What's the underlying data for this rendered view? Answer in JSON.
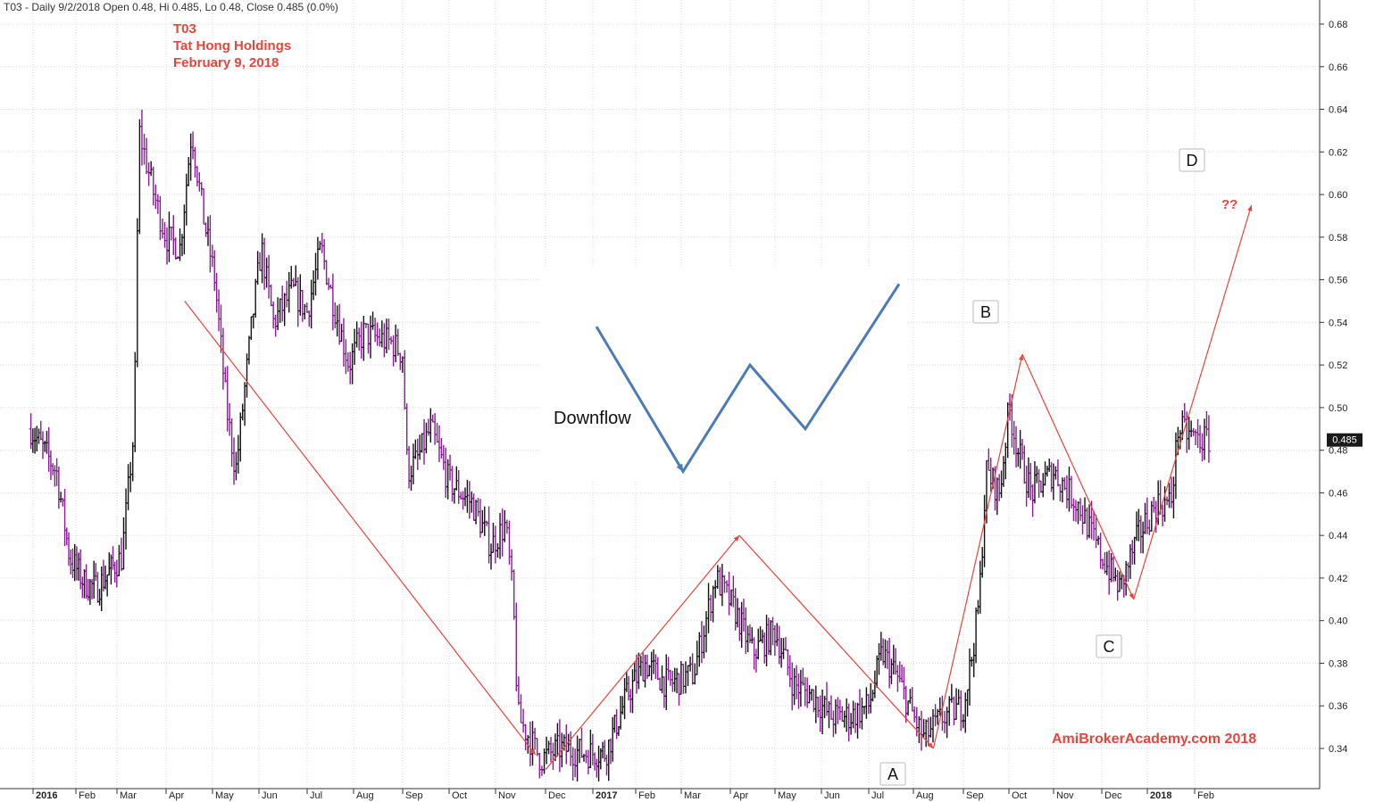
{
  "chart_data": {
    "type": "ohlc",
    "ticker_line": "T03 - Daily 9/2/2018 Open 0.48, Hi 0.485, Lo 0.48, Close 0.485 (0.0%)",
    "title_lines": [
      "T03",
      "Tat Hong Holdings",
      "February 9, 2018"
    ],
    "watermark": "AmiBrokerAcademy.com  2018",
    "last_price_label": "0.485",
    "last_price": 0.485,
    "ylim": [
      0.325,
      0.69
    ],
    "y_ticks": [
      0.34,
      0.36,
      0.38,
      0.4,
      0.42,
      0.44,
      0.46,
      0.48,
      0.5,
      0.52,
      0.54,
      0.56,
      0.58,
      0.6,
      0.62,
      0.64,
      0.66,
      0.68
    ],
    "y_tick_labels": [
      "0.34",
      "0.36",
      "0.38",
      "0.40",
      "0.42",
      "0.44",
      "0.46",
      "0.48",
      "0.50",
      "0.52",
      "0.54",
      "0.56",
      "0.58",
      "0.60",
      "0.62",
      "0.64",
      "0.66",
      "0.68"
    ],
    "x_months": [
      {
        "label": "2016",
        "bold": true,
        "t": 0
      },
      {
        "label": "Feb",
        "bold": false,
        "t": 1
      },
      {
        "label": "Mar",
        "bold": false,
        "t": 2
      },
      {
        "label": "Apr",
        "bold": false,
        "t": 3
      },
      {
        "label": "May",
        "bold": false,
        "t": 4
      },
      {
        "label": "Jun",
        "bold": false,
        "t": 5
      },
      {
        "label": "Jul",
        "bold": false,
        "t": 6
      },
      {
        "label": "Aug",
        "bold": false,
        "t": 7
      },
      {
        "label": "Sep",
        "bold": false,
        "t": 8
      },
      {
        "label": "Oct",
        "bold": false,
        "t": 9
      },
      {
        "label": "Nov",
        "bold": false,
        "t": 10
      },
      {
        "label": "Dec",
        "bold": false,
        "t": 11
      },
      {
        "label": "2017",
        "bold": true,
        "t": 12
      },
      {
        "label": "Feb",
        "bold": false,
        "t": 13
      },
      {
        "label": "Mar",
        "bold": false,
        "t": 14
      },
      {
        "label": "Apr",
        "bold": false,
        "t": 15
      },
      {
        "label": "May",
        "bold": false,
        "t": 16
      },
      {
        "label": "Jun",
        "bold": false,
        "t": 17
      },
      {
        "label": "Jul",
        "bold": false,
        "t": 18
      },
      {
        "label": "Aug",
        "bold": false,
        "t": 19
      },
      {
        "label": "Sep",
        "bold": false,
        "t": 20
      },
      {
        "label": "Oct",
        "bold": false,
        "t": 21
      },
      {
        "label": "Nov",
        "bold": false,
        "t": 22
      },
      {
        "label": "Dec",
        "bold": false,
        "t": 23
      },
      {
        "label": "2018",
        "bold": true,
        "t": 24
      },
      {
        "label": "Feb",
        "bold": false,
        "t": 25
      }
    ],
    "price_path": [
      [
        -0.05,
        0.49
      ],
      [
        0.55,
        0.47
      ],
      [
        0.85,
        0.43
      ],
      [
        1.2,
        0.418
      ],
      [
        1.5,
        0.415
      ],
      [
        2.1,
        0.43
      ],
      [
        2.35,
        0.49
      ],
      [
        2.45,
        0.63
      ],
      [
        2.75,
        0.6
      ],
      [
        3.0,
        0.58
      ],
      [
        3.3,
        0.575
      ],
      [
        3.55,
        0.63
      ],
      [
        3.8,
        0.59
      ],
      [
        4.05,
        0.56
      ],
      [
        4.3,
        0.5
      ],
      [
        4.5,
        0.47
      ],
      [
        4.85,
        0.54
      ],
      [
        5.05,
        0.575
      ],
      [
        5.3,
        0.54
      ],
      [
        5.7,
        0.555
      ],
      [
        6.0,
        0.545
      ],
      [
        6.3,
        0.575
      ],
      [
        6.5,
        0.555
      ],
      [
        6.9,
        0.52
      ],
      [
        7.2,
        0.535
      ],
      [
        7.8,
        0.53
      ],
      [
        8.0,
        0.525
      ],
      [
        8.1,
        0.47
      ],
      [
        8.3,
        0.475
      ],
      [
        8.6,
        0.49
      ],
      [
        9.0,
        0.465
      ],
      [
        9.5,
        0.455
      ],
      [
        9.9,
        0.435
      ],
      [
        10.2,
        0.445
      ],
      [
        10.35,
        0.41
      ],
      [
        10.45,
        0.355
      ],
      [
        10.9,
        0.335
      ],
      [
        11.3,
        0.34
      ],
      [
        11.8,
        0.338
      ],
      [
        12.3,
        0.338
      ],
      [
        12.8,
        0.365
      ],
      [
        13.2,
        0.38
      ],
      [
        13.7,
        0.37
      ],
      [
        14.25,
        0.375
      ],
      [
        14.7,
        0.42
      ],
      [
        15.1,
        0.405
      ],
      [
        15.5,
        0.385
      ],
      [
        16.0,
        0.395
      ],
      [
        16.4,
        0.37
      ],
      [
        16.8,
        0.365
      ],
      [
        17.2,
        0.355
      ],
      [
        17.6,
        0.355
      ],
      [
        18.0,
        0.36
      ],
      [
        18.3,
        0.385
      ],
      [
        18.6,
        0.375
      ],
      [
        18.9,
        0.36
      ],
      [
        19.2,
        0.345
      ],
      [
        19.6,
        0.355
      ],
      [
        20.0,
        0.36
      ],
      [
        20.2,
        0.385
      ],
      [
        20.35,
        0.41
      ],
      [
        20.5,
        0.47
      ],
      [
        20.8,
        0.46
      ],
      [
        21.0,
        0.5
      ],
      [
        21.2,
        0.48
      ],
      [
        21.5,
        0.46
      ],
      [
        22.0,
        0.47
      ],
      [
        22.5,
        0.455
      ],
      [
        23.0,
        0.43
      ],
      [
        23.4,
        0.415
      ],
      [
        23.8,
        0.44
      ],
      [
        24.2,
        0.455
      ],
      [
        24.5,
        0.455
      ],
      [
        24.65,
        0.49
      ],
      [
        25.1,
        0.485
      ],
      [
        25.3,
        0.485
      ]
    ],
    "annotations": {
      "downflow_label": "Downflow",
      "point_labels": [
        "A",
        "B",
        "C",
        "D"
      ],
      "question_label": "??",
      "w_pattern_prices": [
        0.538,
        0.47,
        0.52,
        0.49,
        0.558
      ],
      "red_arrow_lines": [
        {
          "from": [
            3.4,
            0.55
          ],
          "to": [
            10.8,
            0.337
          ]
        },
        {
          "from": [
            11.0,
            0.33
          ],
          "to": [
            15.2,
            0.44
          ]
        },
        {
          "from": [
            15.2,
            0.44
          ],
          "to": [
            19.4,
            0.34
          ]
        },
        {
          "from": [
            19.4,
            0.34
          ],
          "to": [
            21.3,
            0.525
          ]
        },
        {
          "from": [
            21.3,
            0.525
          ],
          "to": [
            23.7,
            0.41
          ]
        },
        {
          "from": [
            23.7,
            0.41
          ],
          "to": [
            26.2,
            0.595
          ]
        }
      ]
    },
    "colors": {
      "bar_down": "#8a1a99",
      "bar_up": "#111111",
      "arrow_red": "#e8443a",
      "w_line_blue": "#4a7bb7",
      "grid": "#d9d9d9"
    }
  }
}
